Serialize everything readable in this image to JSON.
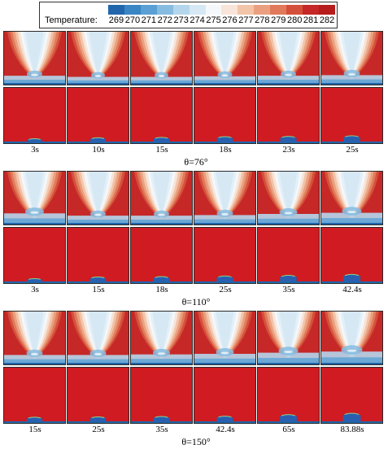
{
  "legend": {
    "title": "Temperature:",
    "ticks": [
      "269",
      "270",
      "271",
      "272",
      "273",
      "274",
      "275",
      "276",
      "277",
      "278",
      "279",
      "280",
      "281",
      "282"
    ],
    "colors": [
      "#2166ac",
      "#3a86c4",
      "#5aa0d4",
      "#86bce0",
      "#b4d6ec",
      "#d6e8f4",
      "#f4f8fb",
      "#f8e4d8",
      "#f2c4a8",
      "#eaa080",
      "#e07a5a",
      "#d4503a",
      "#c62828",
      "#b71c1c"
    ]
  },
  "groups": [
    {
      "angle_label": "θ=76°",
      "times": [
        "3s",
        "10s",
        "15s",
        "18s",
        "23s",
        "25s"
      ],
      "droplet_heights": [
        0.15,
        0.3,
        0.35,
        0.45,
        0.5,
        0.6
      ],
      "cold_spot_level": [
        0.35,
        0.25,
        0.25,
        0.3,
        0.35,
        0.4
      ]
    },
    {
      "angle_label": "θ=110°",
      "times": [
        "3s",
        "15s",
        "18s",
        "25s",
        "35s",
        "42.4s"
      ],
      "droplet_heights": [
        0.15,
        0.4,
        0.45,
        0.55,
        0.65,
        0.8
      ],
      "cold_spot_level": [
        0.55,
        0.35,
        0.35,
        0.4,
        0.5,
        0.6
      ]
    },
    {
      "angle_label": "θ=150°",
      "times": [
        "15s",
        "25s",
        "35s",
        "42.4s",
        "65s",
        "83.88s"
      ],
      "droplet_heights": [
        0.35,
        0.4,
        0.45,
        0.5,
        0.75,
        0.95
      ],
      "cold_spot_level": [
        0.4,
        0.4,
        0.45,
        0.5,
        0.6,
        0.7
      ]
    }
  ]
}
